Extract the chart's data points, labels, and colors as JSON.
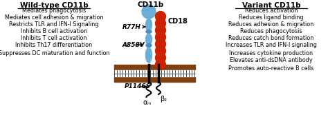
{
  "bg_color": "#ffffff",
  "left_title": "Wild-type CD11b",
  "right_title": "Variant CD11b",
  "left_items": [
    "Mediates phagocytosis",
    "Mediates cell adhesion & migration",
    "Restricts TLR and IFN-I Signaling",
    "Inhibits B cell activation",
    "Inhibits T cell activation",
    "Inhibits Th17 differentiation",
    "Suppresses DC maturation and function"
  ],
  "right_items": [
    "Reduces activation",
    "Reduces ligand binding",
    "Reduces adhesion & migration",
    "Reduces phagocytosis",
    "Reduces catch bond formation",
    "Increases TLR and IFN-I signaling",
    "Increases cytokine production",
    "Elevates anti-dsDNA antibody",
    "Promotes auto-reactive B cells"
  ],
  "mutations": [
    "R77H",
    "A858V",
    "P1146S"
  ],
  "cd11b_label": "CD11b",
  "cd18_label": "CD18",
  "alpha_label": "αₘ",
  "beta_label": "β₂",
  "blue_color": "#6baed6",
  "red_color": "#cc2200",
  "brown_color": "#7B3F10",
  "membrane_stripe": "#cccccc"
}
